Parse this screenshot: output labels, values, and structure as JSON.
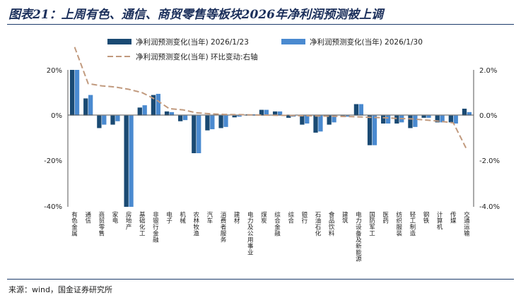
{
  "page": {
    "title": "图表21：上周有色、通信、商贸零售等板块2026年净利润预测被上调",
    "source": "来源：wind，国金证券研究所"
  },
  "colors": {
    "series1": "#1a4a73",
    "series2": "#4a8ad0",
    "line": "#c19a7e",
    "axis": "#555555"
  },
  "chart_data": {
    "type": "bar",
    "title": "图表21：上周有色、通信、商贸零售等板块2026年净利润预测被上调",
    "categories": [
      "有色金属",
      "通信",
      "商贸零售",
      "家电",
      "房地产",
      "基础化工",
      "非银行金融",
      "电子",
      "机械",
      "农林牧渔",
      "汽车",
      "消费者服务",
      "建材",
      "电力及公用事业",
      "煤炭",
      "综合金融",
      "综合",
      "银行",
      "石油石化",
      "食品饮料",
      "建筑",
      "电力设备及新能源",
      "国防军工",
      "医药",
      "纺织服装",
      "轻工制造",
      "钢铁",
      "计算机",
      "传媒",
      "交通运输"
    ],
    "series": [
      {
        "name": "净利润预测变化(当年) 2026/1/23",
        "axis": "left",
        "values": [
          20,
          7.5,
          -5.5,
          -4,
          -40,
          3.5,
          9,
          1.8,
          -2.5,
          -16.5,
          -6.5,
          -5.5,
          -0.8,
          0.5,
          2.5,
          1.8,
          -1,
          -4,
          -7.5,
          -4,
          -0.5,
          5,
          -13,
          -3.5,
          -3.5,
          -5.5,
          -1,
          -3,
          -3,
          3
        ]
      },
      {
        "name": "净利润预测变化(当年) 2026/1/30",
        "axis": "left",
        "values": [
          20,
          9,
          -4,
          -2.5,
          -40,
          4.5,
          9.5,
          1.5,
          -2,
          -16.5,
          -6,
          -5,
          -0.5,
          0.5,
          2.5,
          1.8,
          -0.5,
          -3.5,
          -7,
          -3,
          -0.5,
          5,
          -13,
          -3.5,
          -3,
          -5,
          -1,
          -3,
          -3.5,
          1.5
        ]
      },
      {
        "name": "净利润预测变化(当年) 环比变动:右轴",
        "axis": "right",
        "type": "line",
        "values": [
          3.0,
          1.4,
          1.3,
          1.25,
          1.15,
          1.0,
          0.7,
          0.3,
          0.25,
          0.12,
          0.08,
          0.05,
          0.04,
          0.03,
          0.02,
          0.01,
          0.0,
          -0.01,
          -0.02,
          -0.03,
          -0.04,
          -0.06,
          -0.08,
          -0.1,
          -0.13,
          -0.15,
          -0.2,
          -0.25,
          -0.32,
          -1.5
        ]
      }
    ],
    "ylim_left": [
      -40,
      20
    ],
    "ylim_right": [
      -4,
      2
    ],
    "yticks_left": [
      "20%",
      "0%",
      "-20%",
      "-40%"
    ],
    "yticks_right": [
      "2.0%",
      "0.0%",
      "-2.0%",
      "-4.0%"
    ],
    "legend": [
      "净利润预测变化(当年) 2026/1/23",
      "净利润预测变化(当年) 2026/1/30",
      "净利润预测变化(当年) 环比变动:右轴"
    ],
    "legend_position": "top"
  }
}
